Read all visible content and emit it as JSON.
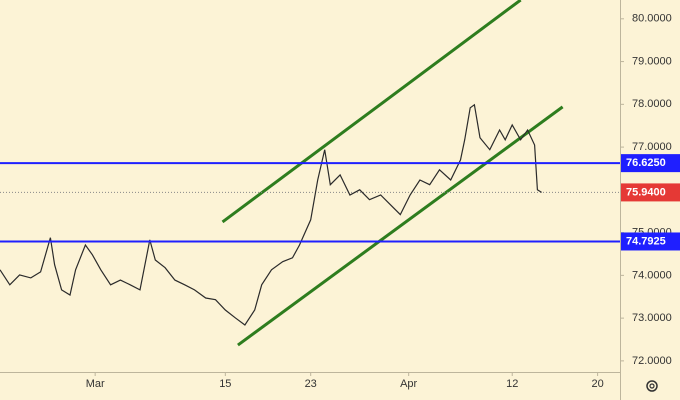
{
  "chart_data": {
    "type": "line",
    "x": [
      -6.8,
      -6.1,
      -5.4,
      -4.6,
      -3.9,
      -3.2,
      -2.9,
      -2.4,
      -1.8,
      -1.4,
      -0.7,
      -0.2,
      0.4,
      1.1,
      1.8,
      2.5,
      3.2,
      3.9,
      4.3,
      5.0,
      5.7,
      6.4,
      7.1,
      7.9,
      8.6,
      9.3,
      10.0,
      10.7,
      11.4,
      11.9,
      12.6,
      13.4,
      14.1,
      14.6,
      15.4,
      15.9,
      16.4,
      16.8,
      17.5,
      18.2,
      18.9,
      19.6,
      20.4,
      21.1,
      21.8,
      22.5,
      23.2,
      23.9,
      24.6,
      25.4,
      26.1,
      26.4,
      26.8,
      27.1,
      27.5,
      28.2,
      28.9,
      29.3,
      29.8,
      30.4,
      30.9,
      31.4,
      31.6,
      31.9
    ],
    "series": [
      {
        "color": "#2b2b2b",
        "values": [
          74.13,
          73.78,
          74.01,
          73.94,
          74.08,
          74.88,
          74.25,
          73.66,
          73.54,
          74.13,
          74.71,
          74.48,
          74.13,
          73.78,
          73.89,
          73.78,
          73.66,
          74.83,
          74.36,
          74.18,
          73.89,
          73.78,
          73.66,
          73.47,
          73.43,
          73.19,
          73.01,
          72.84,
          73.19,
          73.78,
          74.13,
          74.32,
          74.41,
          74.71,
          75.3,
          76.23,
          76.94,
          76.12,
          76.35,
          75.88,
          76.0,
          75.77,
          75.88,
          75.65,
          75.42,
          75.88,
          76.23,
          76.12,
          76.47,
          76.23,
          76.7,
          77.17,
          77.92,
          77.99,
          77.22,
          76.94,
          77.4,
          77.17,
          77.52,
          77.17,
          77.4,
          77.05,
          76.0,
          75.94
        ]
      }
    ],
    "xlim": [
      -6.8,
      37.5
    ],
    "xticks": [
      {
        "value": 0,
        "label": "Mar"
      },
      {
        "value": 9.3,
        "label": "15"
      },
      {
        "value": 15.4,
        "label": "23"
      },
      {
        "value": 22.4,
        "label": "Apr"
      },
      {
        "value": 29.8,
        "label": "12"
      },
      {
        "value": 35.9,
        "label": "20"
      }
    ],
    "ylim": [
      71.74,
      80.44
    ],
    "yticks": [
      {
        "value": 72,
        "label": "72.0000"
      },
      {
        "value": 73,
        "label": "73.0000"
      },
      {
        "value": 74,
        "label": "74.0000"
      },
      {
        "value": 75,
        "label": "75.0000"
      },
      {
        "value": 76,
        "label": "76.0000"
      },
      {
        "value": 77,
        "label": "77.0000"
      },
      {
        "value": 78,
        "label": "78.0000"
      },
      {
        "value": 79,
        "label": "79.0000"
      },
      {
        "value": 80,
        "label": "80.0000"
      }
    ],
    "horizontal_lines": [
      {
        "value": 76.625,
        "label": "76.6250",
        "color": "#1f1fff"
      },
      {
        "value": 74.7925,
        "label": "74.7925",
        "color": "#1f1fff"
      }
    ],
    "last_price": {
      "value": 75.94,
      "label": "75.9400",
      "color": "#e53935"
    },
    "trendlines": [
      {
        "color": "#2e7d1e",
        "x": [
          9.1,
          30.4
        ],
        "y": [
          75.25,
          80.44
        ]
      },
      {
        "color": "#2e7d1e",
        "x": [
          10.2,
          33.4
        ],
        "y": [
          72.37,
          77.94
        ]
      }
    ]
  }
}
